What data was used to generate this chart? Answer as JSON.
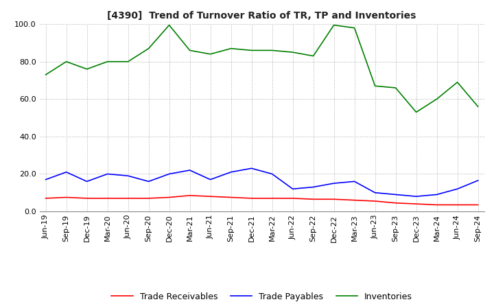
{
  "title": "[4390]  Trend of Turnover Ratio of TR, TP and Inventories",
  "ylim": [
    0,
    100
  ],
  "ytick_values": [
    0,
    20,
    40,
    60,
    80,
    100
  ],
  "ytick_labels": [
    "0.0",
    "20.0",
    "40.0",
    "60.0",
    "80.0",
    "100.0"
  ],
  "labels": [
    "Trade Receivables",
    "Trade Payables",
    "Inventories"
  ],
  "colors": [
    "#ff0000",
    "#0000ff",
    "#008000"
  ],
  "x_labels": [
    "Jun-19",
    "Sep-19",
    "Dec-19",
    "Mar-20",
    "Jun-20",
    "Sep-20",
    "Dec-20",
    "Mar-21",
    "Jun-21",
    "Sep-21",
    "Dec-21",
    "Mar-22",
    "Jun-22",
    "Sep-22",
    "Dec-22",
    "Mar-23",
    "Jun-23",
    "Sep-23",
    "Dec-23",
    "Mar-24",
    "Jun-24",
    "Sep-24"
  ],
  "trade_receivables": [
    7.0,
    7.5,
    7.0,
    7.0,
    7.0,
    7.0,
    7.5,
    8.5,
    8.0,
    7.5,
    7.0,
    7.0,
    7.0,
    6.5,
    6.5,
    6.0,
    5.5,
    4.5,
    4.0,
    3.5,
    3.5,
    3.5
  ],
  "trade_payables": [
    17.0,
    21.0,
    16.0,
    20.0,
    19.0,
    16.0,
    20.0,
    22.0,
    17.0,
    21.0,
    23.0,
    20.0,
    12.0,
    13.0,
    15.0,
    16.0,
    10.0,
    9.0,
    8.0,
    9.0,
    12.0,
    16.5
  ],
  "inventories": [
    73.0,
    80.0,
    76.0,
    80.0,
    80.0,
    87.0,
    99.5,
    86.0,
    84.0,
    87.0,
    86.0,
    86.0,
    85.0,
    83.0,
    99.5,
    98.0,
    67.0,
    66.0,
    53.0,
    60.0,
    69.0,
    56.0
  ],
  "linewidth": 1.2,
  "grid_color": "#aaaaaa",
  "grid_style": ":",
  "grid_linewidth": 0.7,
  "bg_color": "#ffffff",
  "title_fontsize": 10,
  "tick_fontsize": 8,
  "legend_fontsize": 9
}
